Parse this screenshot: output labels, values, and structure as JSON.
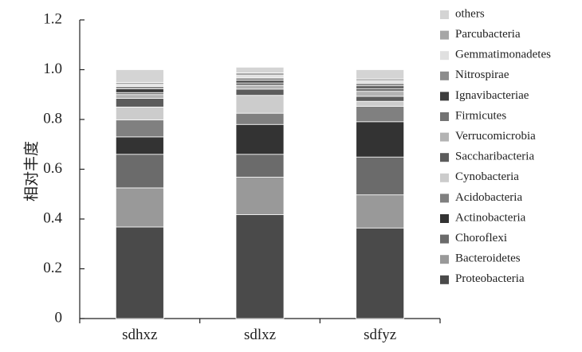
{
  "chart_data": {
    "type": "bar",
    "stacked": true,
    "title": "",
    "xlabel": "",
    "ylabel": "相对丰度",
    "ylim": [
      0,
      1.2
    ],
    "yticks": [
      "0",
      "0.2",
      "0.4",
      "0.6",
      "0.8",
      "1.0",
      "1.2"
    ],
    "grid": false,
    "legend_position": "right",
    "categories": [
      "sdhxz",
      "sdlxz",
      "sdfyz"
    ],
    "series": [
      {
        "name": "Proteobacteria",
        "color": "#4a4a4a",
        "values": [
          0.368,
          0.418,
          0.364
        ]
      },
      {
        "name": "Bacteroidetes",
        "color": "#999999",
        "values": [
          0.157,
          0.15,
          0.133
        ]
      },
      {
        "name": "Choroflexi",
        "color": "#6b6b6b",
        "values": [
          0.135,
          0.092,
          0.152
        ]
      },
      {
        "name": "Actinobacteria",
        "color": "#333333",
        "values": [
          0.07,
          0.12,
          0.142
        ]
      },
      {
        "name": "Acidobacteria",
        "color": "#808080",
        "values": [
          0.068,
          0.045,
          0.062
        ]
      },
      {
        "name": "Cynobacteria",
        "color": "#cccccc",
        "values": [
          0.052,
          0.072,
          0.02
        ]
      },
      {
        "name": "Saccharibacteria",
        "color": "#5c5c5c",
        "values": [
          0.035,
          0.025,
          0.02
        ]
      },
      {
        "name": "Verrucomicrobia",
        "color": "#b3b3b3",
        "values": [
          0.015,
          0.015,
          0.02
        ]
      },
      {
        "name": "Firmicutes",
        "color": "#737373",
        "values": [
          0.008,
          0.01,
          0.012
        ]
      },
      {
        "name": "Ignavibacteriae",
        "color": "#3d3d3d",
        "values": [
          0.015,
          0.01,
          0.01
        ]
      },
      {
        "name": "Nitrospirae",
        "color": "#8c8c8c",
        "values": [
          0.01,
          0.01,
          0.01
        ]
      },
      {
        "name": "Gemmatimonadetes",
        "color": "#e0e0e0",
        "values": [
          0.008,
          0.01,
          0.01
        ]
      },
      {
        "name": "Parcubacteria",
        "color": "#a6a6a6",
        "values": [
          0.008,
          0.01,
          0.008
        ]
      },
      {
        "name": "others",
        "color": "#d4d4d4",
        "values": [
          0.051,
          0.023,
          0.037
        ]
      }
    ]
  }
}
